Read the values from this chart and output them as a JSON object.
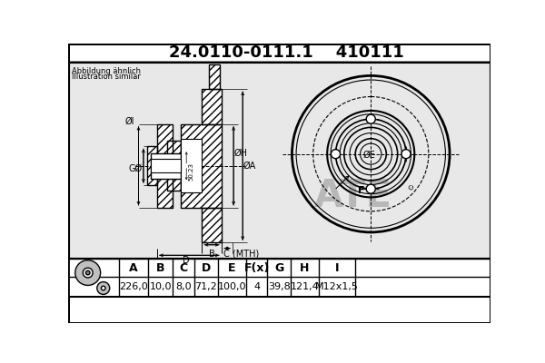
{
  "title_part": "24.0110-0111.1",
  "title_code": "410111",
  "subtitle1": "Abbildung ähnlich",
  "subtitle2": "Illustration similar",
  "table_headers": [
    "A",
    "B",
    "C",
    "D",
    "E",
    "F(x)",
    "G",
    "H",
    "I"
  ],
  "table_values": [
    "226,0",
    "10,0",
    "8,0",
    "71,2",
    "100,0",
    "4",
    "39,8",
    "121,4",
    "M12x1,5"
  ],
  "bg_color": "#ffffff",
  "drawing_bg": "#e0e0e0",
  "title_bg": "#d0d8e8"
}
